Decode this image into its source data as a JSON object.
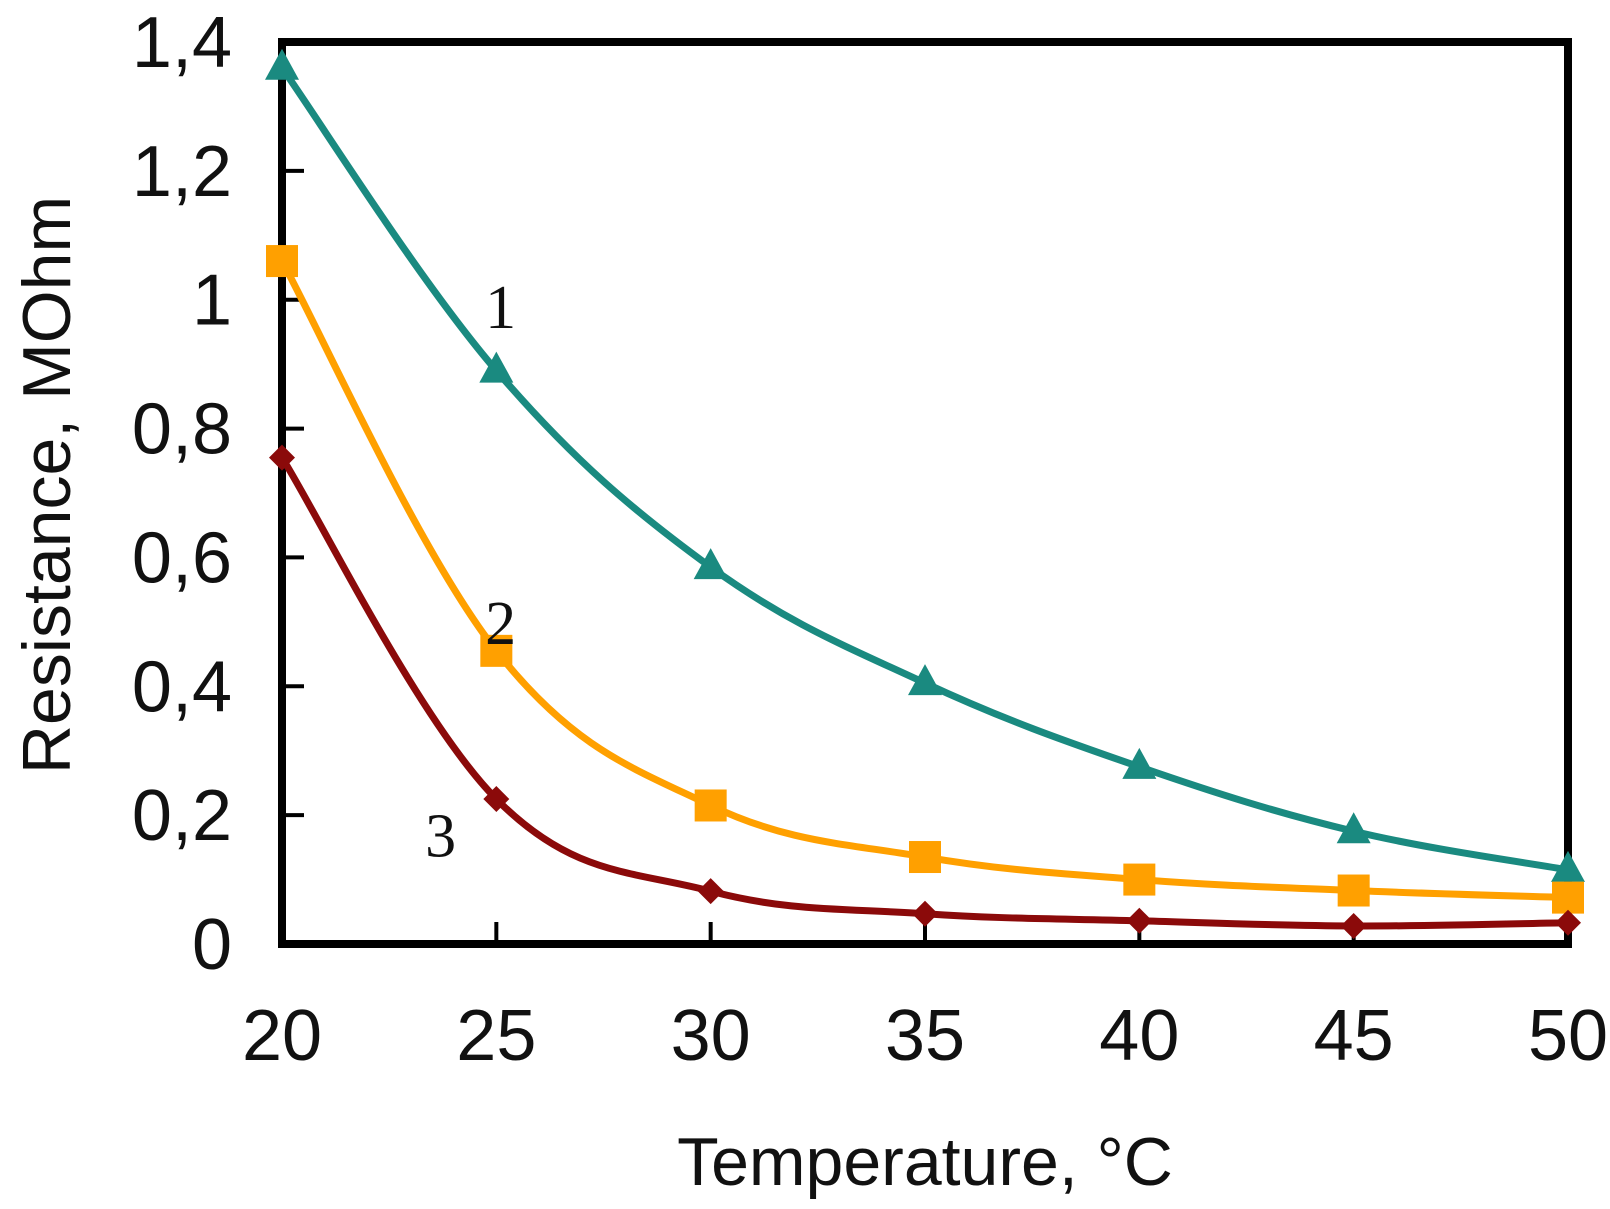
{
  "chart_data": {
    "type": "line",
    "title": "",
    "xlabel": "Temperature, °C",
    "ylabel": "Resistance, MOhm",
    "x": [
      20,
      25,
      30,
      35,
      40,
      45,
      50
    ],
    "x_tick_labels": [
      "20",
      "25",
      "30",
      "35",
      "40",
      "45",
      "50"
    ],
    "y_ticks": [
      0,
      0.2,
      0.4,
      0.6,
      0.8,
      1.0,
      1.2,
      1.4
    ],
    "y_tick_labels": [
      "0",
      "0,2",
      "0,4",
      "0,6",
      "0,8",
      "1",
      "1,2",
      "1,4"
    ],
    "xlim": [
      20,
      50
    ],
    "ylim": [
      0,
      1.4
    ],
    "grid": false,
    "series": [
      {
        "name": "1",
        "label": "1",
        "color": "#1a8a80",
        "marker": "triangle",
        "values": [
          1.36,
          0.89,
          0.585,
          0.405,
          0.275,
          0.175,
          0.115
        ],
        "label_at": [
          25.1,
          0.99
        ]
      },
      {
        "name": "2",
        "label": "2",
        "color": "#ffa000",
        "marker": "square",
        "values": [
          1.06,
          0.455,
          0.215,
          0.135,
          0.1,
          0.083,
          0.072
        ],
        "label_at": [
          25.1,
          0.5
        ]
      },
      {
        "name": "3",
        "label": "3",
        "color": "#8b0a0a",
        "marker": "diamond",
        "values": [
          0.755,
          0.225,
          0.082,
          0.047,
          0.036,
          0.028,
          0.033
        ],
        "label_at": [
          23.7,
          0.17
        ]
      }
    ]
  }
}
